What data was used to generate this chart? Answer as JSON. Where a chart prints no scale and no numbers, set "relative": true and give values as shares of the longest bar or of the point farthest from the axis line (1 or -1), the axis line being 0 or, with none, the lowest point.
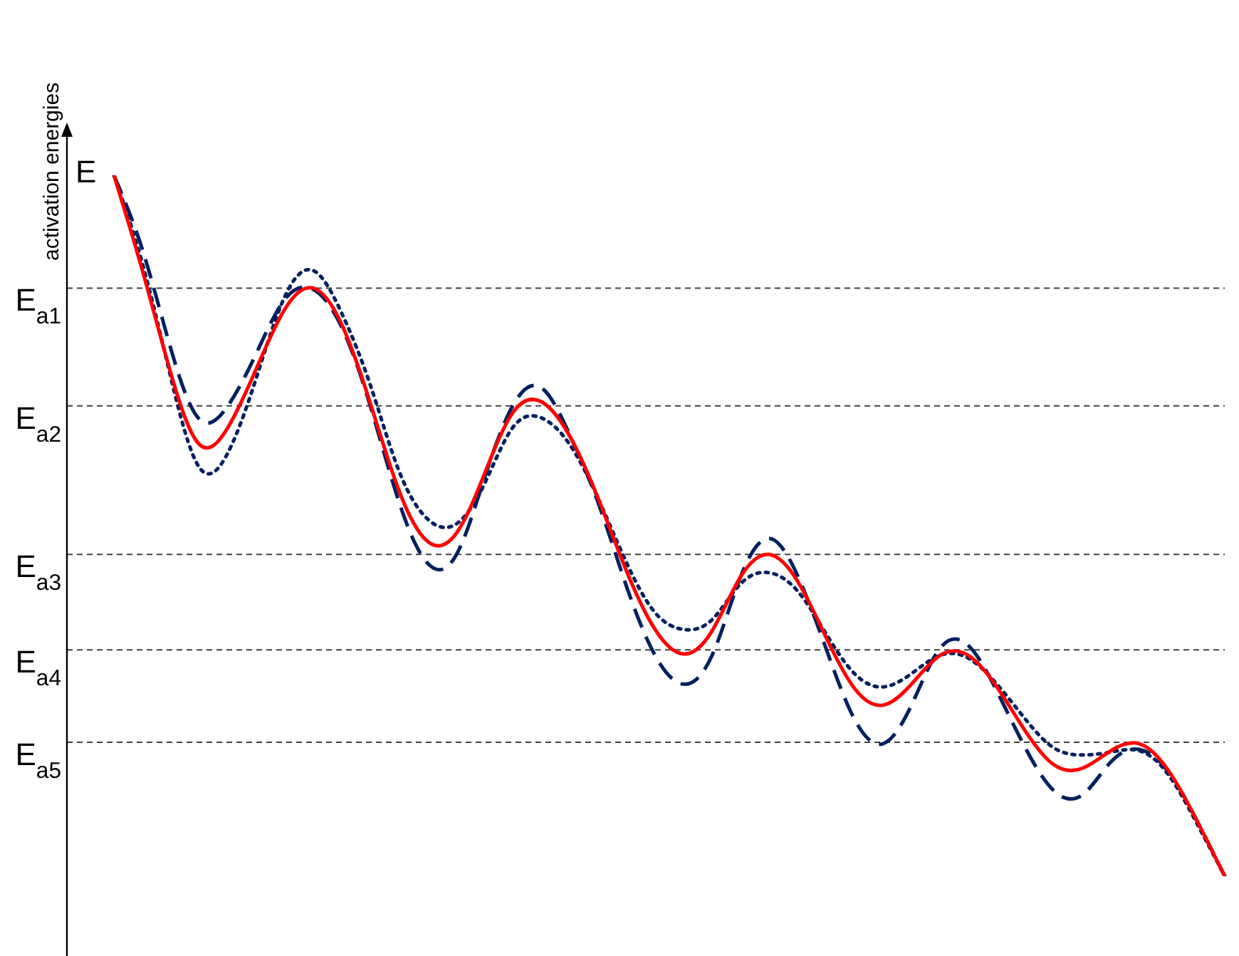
{
  "chart_data": {
    "type": "line",
    "relative": true,
    "ylabel": "activation energies",
    "annotations": [
      "E"
    ],
    "categories": [
      null,
      null,
      null,
      null,
      null,
      null,
      null,
      null,
      null,
      null,
      null,
      null,
      null,
      null,
      null,
      null,
      null,
      null,
      null,
      null,
      null,
      null,
      null,
      null,
      null,
      null,
      null,
      null,
      null,
      null,
      null,
      null,
      null,
      null,
      null,
      null,
      null,
      null,
      null,
      null
    ],
    "series": [
      {
        "color": "#002060",
        "line_style": "dashed",
        "values": [
          1.0,
          0.894,
          0.752,
          0.652,
          0.671,
          0.746,
          0.823,
          0.837,
          0.783,
          0.671,
          0.535,
          0.447,
          0.457,
          0.567,
          0.671,
          0.697,
          0.63,
          0.533,
          0.413,
          0.315,
          0.274,
          0.315,
          0.427,
          0.482,
          0.429,
          0.325,
          0.224,
          0.189,
          0.244,
          0.325,
          0.329,
          0.264,
          0.183,
          0.122,
          0.116,
          0.163,
          0.181,
          0.15,
          0.081,
          0.0
        ]
      },
      {
        "color": "#002060",
        "line_style": "dotted",
        "values": [
          1.0,
          0.874,
          0.711,
          0.583,
          0.604,
          0.711,
          0.827,
          0.864,
          0.803,
          0.701,
          0.579,
          0.51,
          0.502,
          0.559,
          0.64,
          0.654,
          0.616,
          0.539,
          0.447,
          0.376,
          0.352,
          0.366,
          0.417,
          0.433,
          0.407,
          0.346,
          0.289,
          0.27,
          0.289,
          0.315,
          0.311,
          0.274,
          0.224,
          0.183,
          0.173,
          0.177,
          0.179,
          0.146,
          0.077,
          0.0
        ]
      },
      {
        "color": "#ff0000",
        "line_style": "solid",
        "values": [
          1.0,
          0.864,
          0.717,
          0.616,
          0.64,
          0.724,
          0.809,
          0.839,
          0.787,
          0.675,
          0.551,
          0.478,
          0.488,
          0.573,
          0.661,
          0.677,
          0.628,
          0.539,
          0.435,
          0.352,
          0.317,
          0.35,
          0.427,
          0.459,
          0.421,
          0.341,
          0.268,
          0.244,
          0.274,
          0.315,
          0.315,
          0.27,
          0.207,
          0.159,
          0.154,
          0.179,
          0.189,
          0.152,
          0.081,
          0.0
        ]
      }
    ],
    "ref_lines": [
      {
        "axis": "y",
        "value": 0.839,
        "label": "E$_{a1}$",
        "color": "#404040",
        "line_style": "dashed"
      },
      {
        "axis": "y",
        "value": 0.671,
        "label": "E$_{a2}$",
        "color": "#404040",
        "line_style": "dashed"
      },
      {
        "axis": "y",
        "value": 0.459,
        "label": "E$_{a3}$",
        "color": "#404040",
        "line_style": "dashed"
      },
      {
        "axis": "y",
        "value": 0.323,
        "label": "E$_{a4}$",
        "color": "#404040",
        "line_style": "dashed"
      },
      {
        "axis": "y",
        "value": 0.191,
        "label": "E$_{a5}$",
        "color": "#404040",
        "line_style": "dashed"
      }
    ]
  }
}
